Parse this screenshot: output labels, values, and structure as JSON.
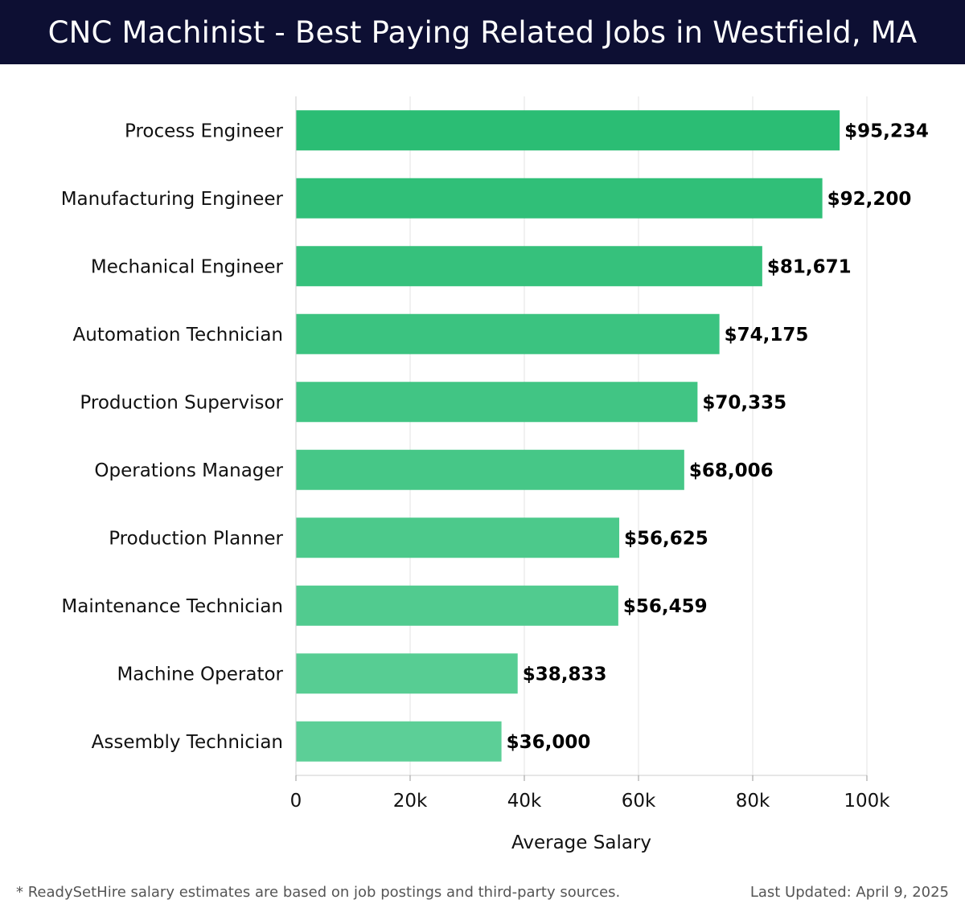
{
  "header": {
    "title": "CNC Machinist - Best Paying Related Jobs in Westfield, MA"
  },
  "chart_data": {
    "type": "bar",
    "orientation": "horizontal",
    "title": "CNC Machinist - Best Paying Related Jobs in Westfield, MA",
    "xlabel": "Average Salary",
    "ylabel": "",
    "categories": [
      "Process Engineer",
      "Manufacturing Engineer",
      "Mechanical Engineer",
      "Automation Technician",
      "Production Supervisor",
      "Operations Manager",
      "Production Planner",
      "Maintenance Technician",
      "Machine Operator",
      "Assembly Technician"
    ],
    "values": [
      95234,
      92200,
      81671,
      74175,
      70335,
      68006,
      56625,
      56459,
      38833,
      36000
    ],
    "value_labels": [
      "$95,234",
      "$92,200",
      "$81,671",
      "$74,175",
      "$70,335",
      "$68,006",
      "$56,625",
      "$56,459",
      "$38,833",
      "$36,000"
    ],
    "xlim": [
      0,
      100000
    ],
    "ticks": [
      0,
      20000,
      40000,
      60000,
      80000,
      100000
    ],
    "tick_labels": [
      "0",
      "20k",
      "40k",
      "60k",
      "80k",
      "100k"
    ],
    "grid": true,
    "colors": {
      "bar_top": "#2bbd74",
      "bar_bottom": "#5ccf97",
      "grid": "#e3e3e3"
    }
  },
  "footer": {
    "note": "* ReadySetHire salary estimates are based on job postings and third-party sources.",
    "updated": "Last Updated: April 9, 2025"
  }
}
